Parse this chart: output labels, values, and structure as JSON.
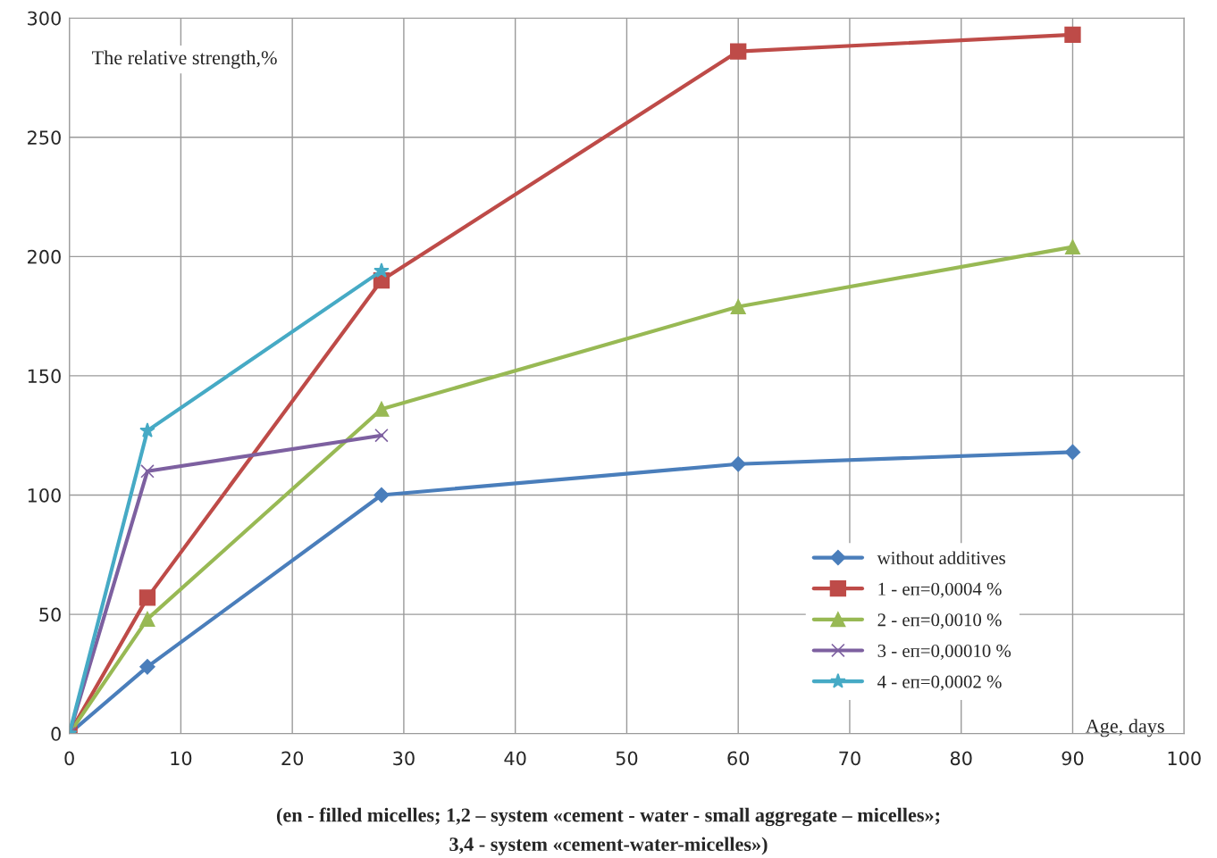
{
  "chart_data": {
    "type": "line",
    "ylabel": "The relative strength,%",
    "xlabel": "Age, days",
    "xlim": [
      0,
      100
    ],
    "ylim": [
      0,
      300
    ],
    "xticks": [
      0,
      10,
      20,
      30,
      40,
      50,
      60,
      70,
      80,
      90,
      100
    ],
    "yticks": [
      0,
      50,
      100,
      150,
      200,
      250,
      300
    ],
    "grid": true,
    "legend": "bottom right",
    "line_style": "solid",
    "series": [
      {
        "name": "without additives",
        "color": "#4a7ebb",
        "marker": "diamond",
        "x": [
          0,
          7,
          28,
          60,
          90
        ],
        "values": [
          0,
          28,
          100,
          113,
          118
        ]
      },
      {
        "name": "1 - еп=0,0004 %",
        "color": "#be4b48",
        "marker": "square",
        "x": [
          0,
          7,
          28,
          60,
          90
        ],
        "values": [
          0,
          57,
          190,
          286,
          293
        ]
      },
      {
        "name": "2 - еп=0,0010 %",
        "color": "#98b954",
        "marker": "triangle",
        "x": [
          0,
          7,
          28,
          60,
          90
        ],
        "values": [
          0,
          48,
          136,
          179,
          204
        ]
      },
      {
        "name": "3 - еп=0,00010 %",
        "color": "#7d60a0",
        "marker": "cross",
        "x": [
          0,
          7,
          28
        ],
        "values": [
          0,
          110,
          125
        ]
      },
      {
        "name": "4 - еп=0,0002 %",
        "color": "#46aac5",
        "marker": "star",
        "x": [
          0,
          7,
          28
        ],
        "values": [
          0,
          127,
          194
        ]
      }
    ],
    "annotations": [
      "(en - filled micelles; 1,2 – system «cement - water - small aggregate – micelles»;",
      "3,4 - system «cement-water-micelles»)"
    ]
  }
}
